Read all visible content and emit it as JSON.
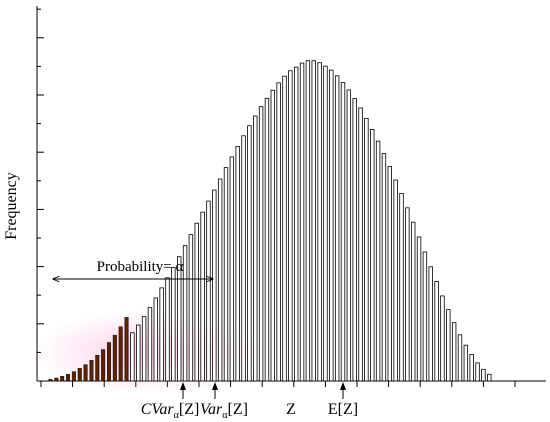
{
  "chart_data": {
    "type": "bar",
    "title": "",
    "xlabel": "",
    "ylabel": "Frequency",
    "grid": false,
    "legend": "none",
    "x_ticks_count": 16,
    "y_ticks_count": 13,
    "ylim": [
      0,
      100
    ],
    "series": [
      {
        "highlight": true,
        "color": "#5a2200",
        "values": [
          0.5,
          0.9,
          1.4,
          2.0,
          2.8,
          3.8,
          4.9,
          6.2,
          7.7,
          9.4,
          11.5,
          13.7,
          16.2,
          19.0
        ]
      },
      {
        "highlight": false,
        "color": "#ffffff",
        "values": [
          14.4,
          16.7,
          19.2,
          21.9,
          24.8,
          27.8,
          30.8,
          33.9,
          37.1,
          40.4,
          43.7,
          47.1,
          50.4,
          53.7,
          57.0,
          60.3,
          63.7,
          66.9,
          70.0,
          73.2,
          76.2,
          79.1,
          81.9,
          84.4,
          86.8,
          89.0,
          91.0,
          92.6,
          93.7,
          94.9,
          95.6,
          95.6,
          95.0,
          94.0,
          92.8,
          91.1,
          89.1,
          86.9,
          84.3,
          81.5,
          78.4,
          75.1,
          71.6,
          67.9,
          64.0,
          60.0,
          56.0,
          51.7,
          47.4,
          43.0,
          38.5,
          34.1,
          29.7,
          25.4,
          21.3,
          17.4,
          13.8,
          10.7,
          7.9,
          5.4,
          3.5,
          2.0
        ]
      }
    ],
    "annotations": {
      "probability_label": "Probability= α",
      "markers": [
        {
          "text_main": "CVar",
          "text_sub": "α",
          "text_tail": "[Z]",
          "bar_index": 12
        },
        {
          "text_main": "Var",
          "text_sub": "α",
          "text_tail": "[Z]",
          "bar_index": 15
        },
        {
          "text_main": "Z",
          "text_sub": "",
          "text_tail": "",
          "bar_index": 22
        },
        {
          "text_main": "E[Z]",
          "text_sub": "",
          "text_tail": "",
          "bar_index": 27
        }
      ]
    }
  }
}
